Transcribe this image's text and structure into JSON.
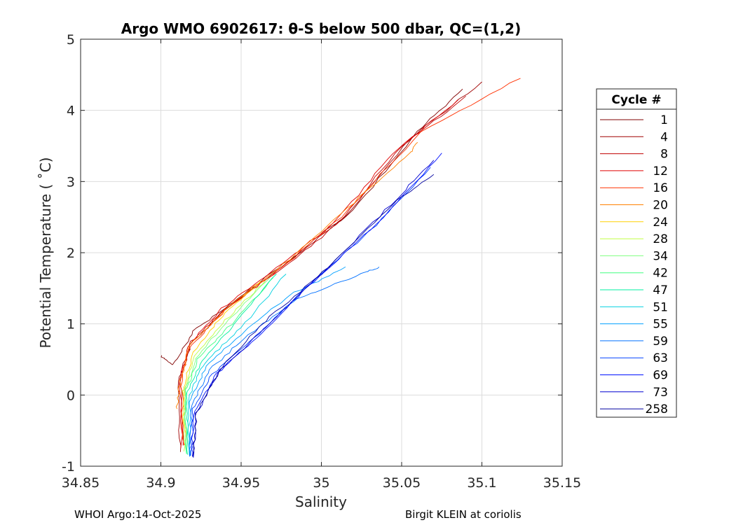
{
  "chart_data": {
    "type": "line",
    "title": "Argo WMO 6902617: θ-S below 500 dbar,  QC=(1,2)",
    "xlabel": "Salinity",
    "ylabel": "Potential Temperature ( ˚C)",
    "xlim": [
      34.85,
      35.15
    ],
    "ylim": [
      -1,
      5
    ],
    "xticks": [
      34.85,
      34.9,
      34.95,
      35,
      35.05,
      35.1,
      35.15
    ],
    "xtick_labels": [
      "34.85",
      "34.9",
      "34.95",
      "35",
      "35.05",
      "35.1",
      "35.15"
    ],
    "yticks": [
      -1,
      0,
      1,
      2,
      3,
      4,
      5
    ],
    "ytick_labels": [
      "-1",
      "0",
      "1",
      "2",
      "3",
      "4",
      "5"
    ],
    "grid": true,
    "legend_title": "Cycle #",
    "legend_placement": "right",
    "series": [
      {
        "name": "1",
        "color": "#800000",
        "s": [
          34.9,
          34.908,
          34.92,
          34.945,
          34.98,
          35.02,
          35.06,
          35.088
        ],
        "t": [
          0.55,
          0.42,
          0.9,
          1.3,
          1.9,
          2.6,
          3.7,
          4.3
        ]
      },
      {
        "name": "4",
        "color": "#a00000",
        "s": [
          34.912,
          34.911,
          34.918,
          34.94,
          34.975,
          35.015,
          35.055,
          35.1
        ],
        "t": [
          -0.8,
          0.2,
          0.7,
          1.2,
          1.8,
          2.5,
          3.6,
          4.4
        ]
      },
      {
        "name": "8",
        "color": "#c00000",
        "s": [
          34.914,
          34.912,
          34.919,
          34.942,
          34.977,
          35.01,
          35.05,
          35.09
        ],
        "t": [
          -0.7,
          0.25,
          0.75,
          1.25,
          1.8,
          2.4,
          3.5,
          4.2
        ]
      },
      {
        "name": "12",
        "color": "#e00000",
        "s": [
          34.913,
          34.912,
          34.918,
          34.938,
          34.972,
          35.008,
          35.045,
          35.085
        ],
        "t": [
          -0.75,
          0.22,
          0.72,
          1.22,
          1.78,
          2.42,
          3.4,
          4.15
        ]
      },
      {
        "name": "16",
        "color": "#ff3000",
        "s": [
          34.914,
          34.913,
          34.917,
          34.94,
          34.976,
          35.012,
          35.062,
          35.124
        ],
        "t": [
          -0.7,
          0.2,
          0.65,
          1.2,
          1.8,
          2.5,
          3.7,
          4.45
        ]
      },
      {
        "name": "20",
        "color": "#ff8000",
        "s": [
          34.91,
          34.912,
          34.918,
          34.945,
          34.98,
          35.02,
          35.055,
          35.06
        ],
        "t": [
          -0.2,
          0.2,
          0.7,
          1.3,
          1.9,
          2.7,
          3.4,
          3.55
        ]
      },
      {
        "name": "24",
        "color": "#ffd000",
        "s": [
          34.915,
          34.914,
          34.92,
          34.938,
          34.962
        ],
        "t": [
          -0.7,
          0.1,
          0.6,
          1.1,
          1.6
        ]
      },
      {
        "name": "28",
        "color": "#c0ff40",
        "s": [
          34.915,
          34.914,
          34.921,
          34.94,
          34.965
        ],
        "t": [
          -0.8,
          0.05,
          0.55,
          1.05,
          1.6
        ]
      },
      {
        "name": "34",
        "color": "#80ff80",
        "s": [
          34.916,
          34.915,
          34.922,
          34.942,
          34.968
        ],
        "t": [
          -0.82,
          0.05,
          0.52,
          1.05,
          1.65
        ]
      },
      {
        "name": "42",
        "color": "#40ff80",
        "s": [
          34.916,
          34.915,
          34.923,
          34.944,
          34.97
        ],
        "t": [
          -0.82,
          0.02,
          0.5,
          1.0,
          1.65
        ]
      },
      {
        "name": "47",
        "color": "#00f0a0",
        "s": [
          34.917,
          34.916,
          34.925,
          34.946,
          34.972
        ],
        "t": [
          -0.84,
          0.0,
          0.48,
          1.0,
          1.7
        ]
      },
      {
        "name": "51",
        "color": "#00d0e0",
        "s": [
          34.917,
          34.917,
          34.927,
          34.95,
          34.978
        ],
        "t": [
          -0.84,
          -0.05,
          0.45,
          0.95,
          1.7
        ]
      },
      {
        "name": "55",
        "color": "#00a0ff",
        "s": [
          34.918,
          34.918,
          34.928,
          34.952,
          34.98,
          35.015
        ],
        "t": [
          -0.86,
          -0.1,
          0.4,
          0.9,
          1.4,
          1.8
        ]
      },
      {
        "name": "59",
        "color": "#0070ff",
        "s": [
          34.918,
          34.919,
          34.93,
          34.955,
          34.985,
          35.025,
          35.036
        ],
        "t": [
          -0.86,
          -0.15,
          0.35,
          0.85,
          1.35,
          1.7,
          1.8
        ]
      },
      {
        "name": "63",
        "color": "#0040ff",
        "s": [
          34.919,
          34.92,
          34.932,
          34.958,
          34.99,
          35.03,
          35.068
        ],
        "t": [
          -0.86,
          -0.2,
          0.3,
          0.8,
          1.5,
          2.3,
          3.2
        ]
      },
      {
        "name": "69",
        "color": "#0010ff",
        "s": [
          34.919,
          34.921,
          34.935,
          34.962,
          34.995,
          35.035,
          35.075
        ],
        "t": [
          -0.86,
          -0.22,
          0.3,
          0.85,
          1.6,
          2.4,
          3.4
        ]
      },
      {
        "name": "73",
        "color": "#0000d0",
        "s": [
          34.92,
          34.922,
          34.937,
          34.965,
          35.0,
          35.04,
          35.07
        ],
        "t": [
          -0.87,
          -0.25,
          0.35,
          0.95,
          1.7,
          2.6,
          3.3
        ]
      },
      {
        "name": "258",
        "color": "#0000a0",
        "s": [
          34.92,
          34.922,
          34.938,
          34.968,
          35.005,
          35.045,
          35.07
        ],
        "t": [
          -0.87,
          -0.25,
          0.4,
          1.1,
          1.8,
          2.7,
          3.1
        ]
      }
    ]
  },
  "footer": {
    "left": "WHOI Argo:14-Oct-2025",
    "right": "Birgit KLEIN at coriolis"
  }
}
